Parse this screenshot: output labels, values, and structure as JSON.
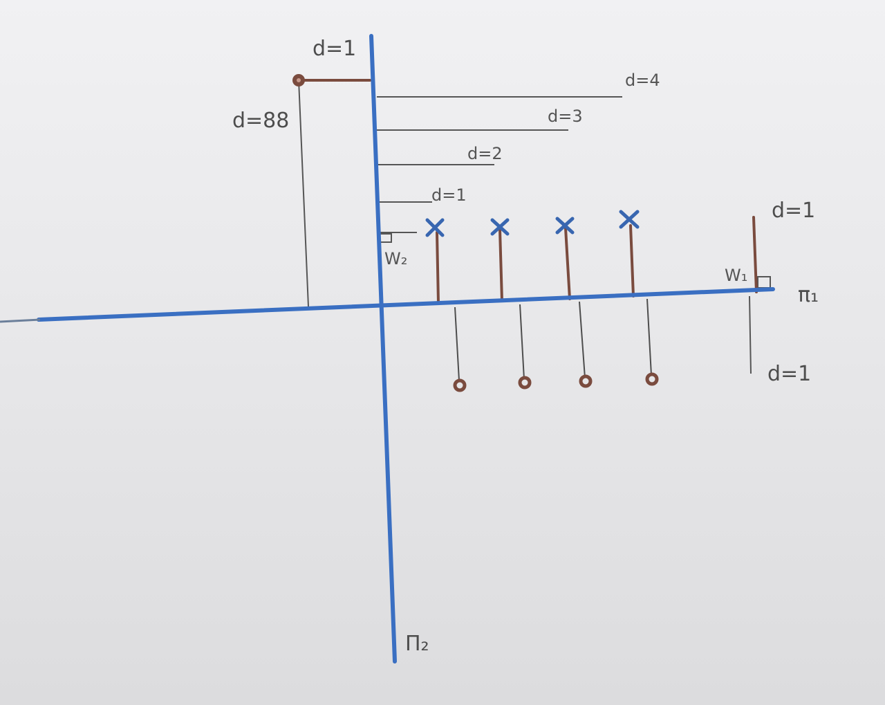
{
  "labels": {
    "top_d1": "d=1",
    "d88": "d=88",
    "d4": "d=4",
    "d3": "d=3",
    "d2": "d=2",
    "d1_mid": "d=1",
    "w2": "W₂",
    "w1": "W₁",
    "right_d1_top": "d=1",
    "right_d1_bottom": "d=1",
    "pi1": "π₁",
    "pi2": "Π₂"
  },
  "colors": {
    "paper": "#ececee",
    "axis_blue": "#3a6fc2",
    "ink_brown": "#7a4b3e",
    "pencil": "#555555",
    "cross_blue": "#3866b0"
  },
  "markers": {
    "positive_class": "cross",
    "negative_class": "circle",
    "positive_count": 4,
    "negative_count": 4
  }
}
